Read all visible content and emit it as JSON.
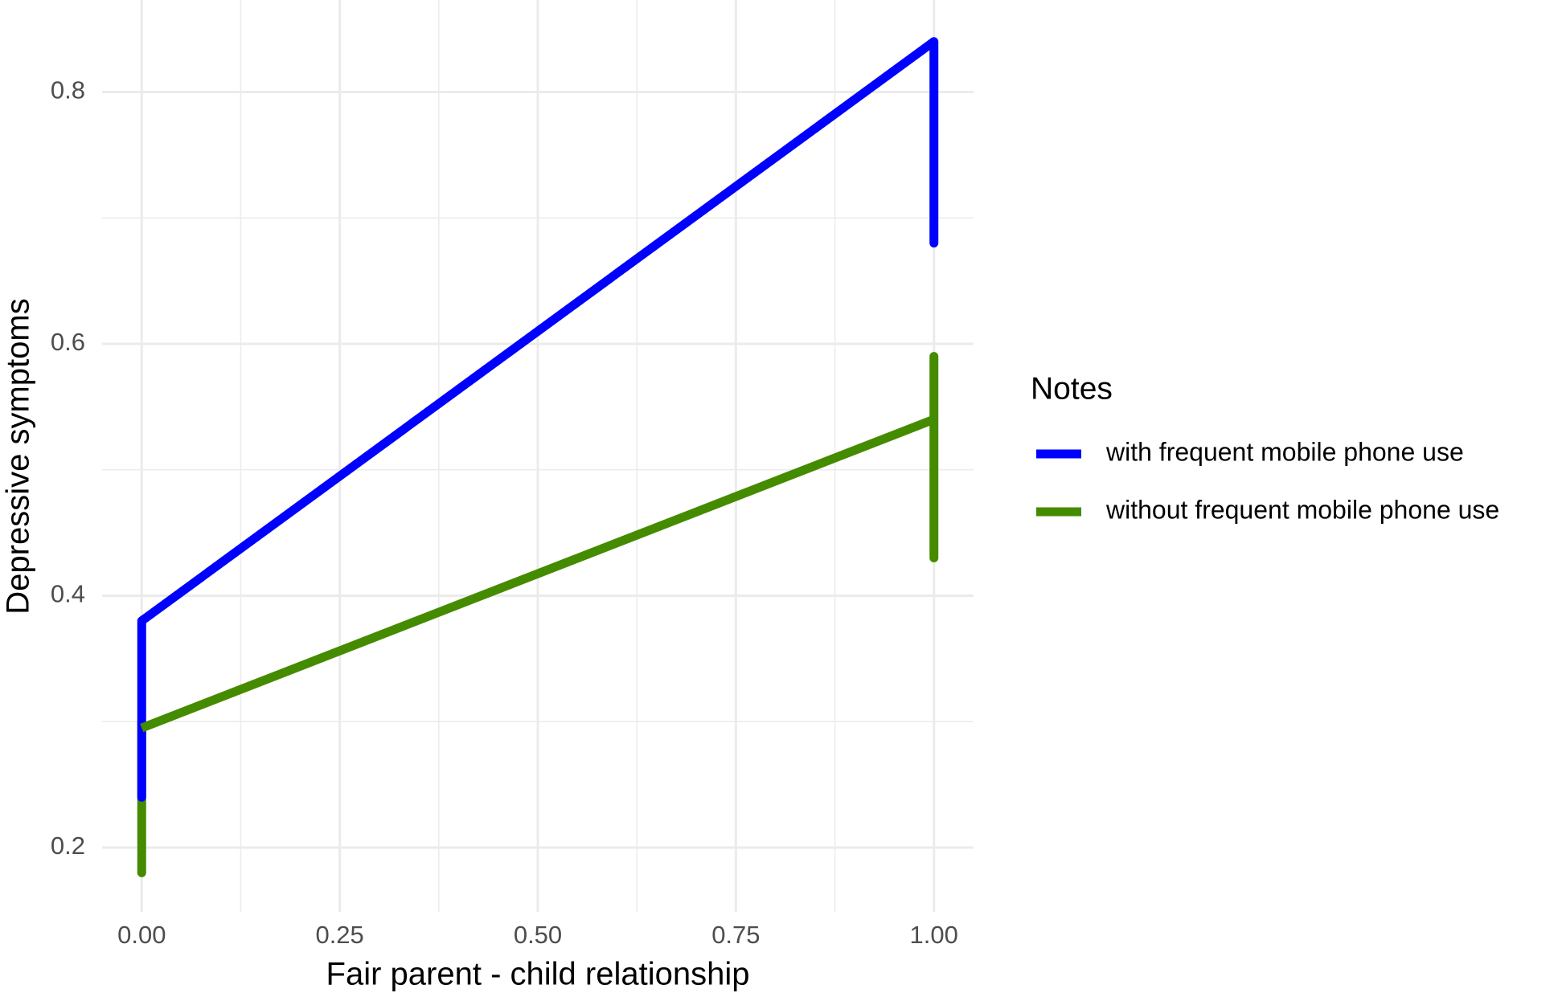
{
  "chart_data": {
    "type": "line",
    "x_label": "Fair parent - child relationship",
    "y_label": "Depressive symptoms",
    "legend_title": "Notes",
    "x": [
      0,
      1
    ],
    "series": [
      {
        "name": "with frequent mobile phone use",
        "color": "#0000ff",
        "values": [
          0.38,
          0.84
        ],
        "lower": [
          0.24,
          0.68
        ],
        "upper": [
          0.38,
          0.84
        ]
      },
      {
        "name": "without frequent mobile phone use",
        "color": "#458b00",
        "values": [
          0.295,
          0.54
        ],
        "lower": [
          0.18,
          0.43
        ],
        "upper": [
          0.3,
          0.59
        ]
      }
    ],
    "xlim": [
      -0.05,
      1.05
    ],
    "ylim": [
      0.149,
      0.873
    ],
    "xticks": [
      {
        "value": 0,
        "label": "0.00"
      },
      {
        "value": 0.25,
        "label": "0.25"
      },
      {
        "value": 0.5,
        "label": "0.50"
      },
      {
        "value": 0.75,
        "label": "0.75"
      },
      {
        "value": 1,
        "label": "1.00"
      }
    ],
    "yticks": [
      0.2,
      0.4,
      0.6,
      0.8
    ],
    "grid": true,
    "legend_position": "right"
  }
}
